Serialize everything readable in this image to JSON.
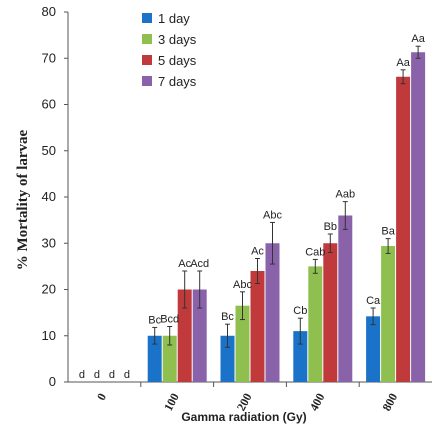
{
  "chart_data": {
    "type": "bar",
    "title": "",
    "xlabel": "Gamma radiation (Gy)",
    "ylabel": "%  Mortality of larvae",
    "categories": [
      "0",
      "100",
      "200",
      "400",
      "800"
    ],
    "ylim": [
      0,
      80
    ],
    "yticks": [
      0,
      10,
      20,
      30,
      40,
      50,
      60,
      70,
      80
    ],
    "grid": false,
    "legend_position": "top-left",
    "series": [
      {
        "name": "1 day",
        "color": "#1a73c8",
        "values": [
          0,
          10,
          10,
          11,
          14.2
        ],
        "errors": [
          0,
          1.8,
          2.5,
          2.8,
          1.8
        ],
        "labels": [
          "d",
          "Bc",
          "Bc",
          "Cb",
          "Ca"
        ]
      },
      {
        "name": "3 days",
        "color": "#8fbf4f",
        "values": [
          0,
          10,
          16.5,
          25,
          29.4
        ],
        "errors": [
          0,
          2.0,
          3.0,
          1.5,
          1.6
        ],
        "labels": [
          "d",
          "Bcd",
          "Abc",
          "Cab",
          "Ba"
        ]
      },
      {
        "name": "5 days",
        "color": "#c0393b",
        "values": [
          0,
          20,
          24,
          30,
          66
        ],
        "errors": [
          0,
          4.0,
          2.7,
          2.0,
          1.5
        ],
        "labels": [
          "d",
          "Ac",
          "Ac",
          "Bb",
          "Aa"
        ]
      },
      {
        "name": "7 days",
        "color": "#8a62aa",
        "values": [
          0,
          20,
          30,
          36,
          71.3
        ],
        "errors": [
          0,
          4.0,
          4.5,
          3.0,
          1.3
        ],
        "labels": [
          "d",
          "Acd",
          "Abc",
          "Aab",
          "Aa"
        ]
      }
    ]
  }
}
